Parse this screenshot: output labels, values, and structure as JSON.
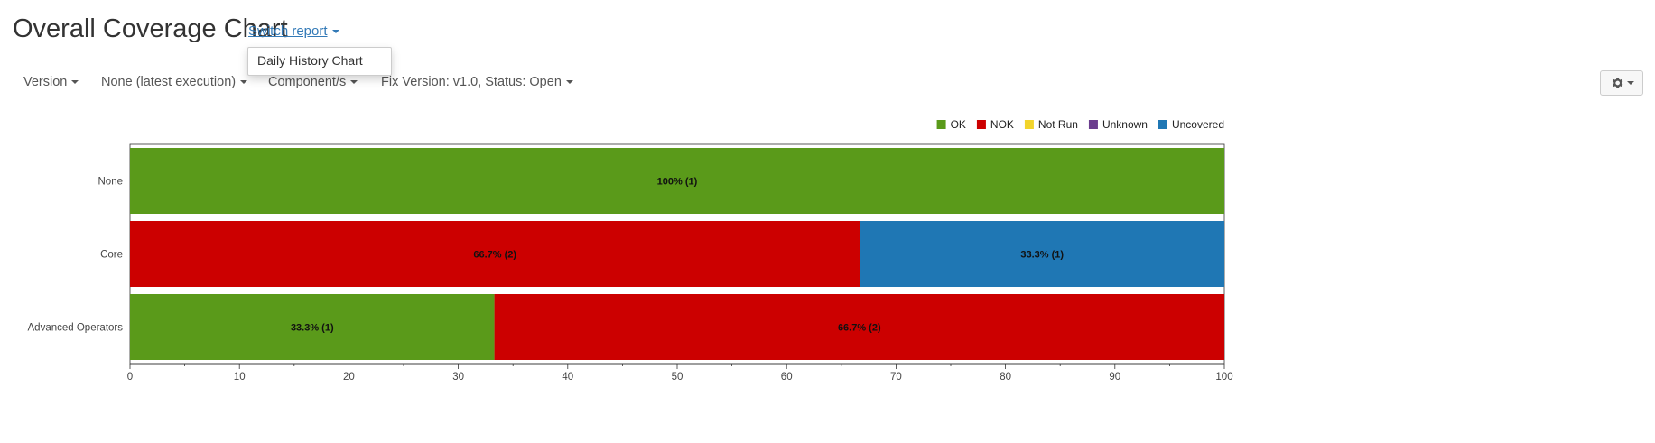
{
  "header": {
    "title": "Overall Coverage Chart",
    "switch_report_label": "Switch report",
    "dropdown_items": [
      "Daily History Chart"
    ]
  },
  "filters": [
    {
      "label": "Version"
    },
    {
      "label": "None (latest execution)"
    },
    {
      "label": "Component/s"
    },
    {
      "label": "Fix Version: v1.0, Status: Open"
    }
  ],
  "settings": {
    "icon": "gear-icon"
  },
  "chart_data": {
    "type": "bar",
    "orientation": "horizontal",
    "stacked": true,
    "categories": [
      "None",
      "Core",
      "Advanced Operators"
    ],
    "series": [
      {
        "name": "OK",
        "color": "#5a9a1a",
        "values": [
          100,
          0,
          33.3
        ],
        "labels": [
          "100% (1)",
          "",
          "33.3% (1)"
        ]
      },
      {
        "name": "NOK",
        "color": "#cc0000",
        "values": [
          0,
          66.7,
          66.7
        ],
        "labels": [
          "",
          "66.7% (2)",
          "66.7% (2)"
        ]
      },
      {
        "name": "Not Run",
        "color": "#f2d42b",
        "values": [
          0,
          0,
          0
        ],
        "labels": [
          "",
          "",
          ""
        ]
      },
      {
        "name": "Unknown",
        "color": "#6b3d8e",
        "values": [
          0,
          0,
          0
        ],
        "labels": [
          "",
          "",
          ""
        ]
      },
      {
        "name": "Uncovered",
        "color": "#1f77b4",
        "values": [
          0,
          33.3,
          0
        ],
        "labels": [
          "",
          "33.3% (1)",
          ""
        ]
      }
    ],
    "xlim": [
      0,
      100
    ],
    "xticks": [
      0,
      10,
      20,
      30,
      40,
      50,
      60,
      70,
      80,
      90,
      100
    ],
    "legend_position": "top-right",
    "title": "",
    "xlabel": "",
    "ylabel": ""
  }
}
